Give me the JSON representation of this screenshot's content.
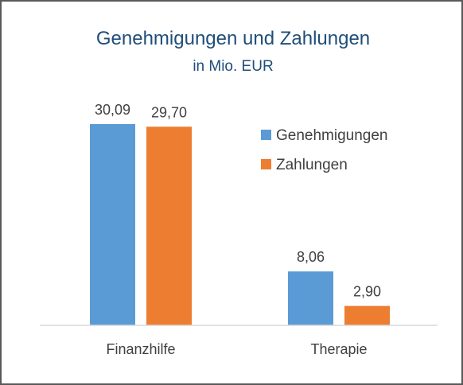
{
  "chart_data": {
    "type": "bar",
    "title": "Genehmigungen und Zahlungen",
    "subtitle": "in Mio. EUR",
    "categories": [
      "Finanzhilfe",
      "Therapie"
    ],
    "series": [
      {
        "name": "Genehmigungen",
        "color": "#5b9bd5",
        "values": [
          30.09,
          8.06
        ],
        "labels": [
          "30,09",
          "8,06"
        ]
      },
      {
        "name": "Zahlungen",
        "color": "#ed7d31",
        "values": [
          29.7,
          2.9
        ],
        "labels": [
          "29,70",
          "2,90"
        ]
      }
    ],
    "ylim": [
      0,
      30.09
    ],
    "grid": false,
    "legend_position": "right"
  }
}
